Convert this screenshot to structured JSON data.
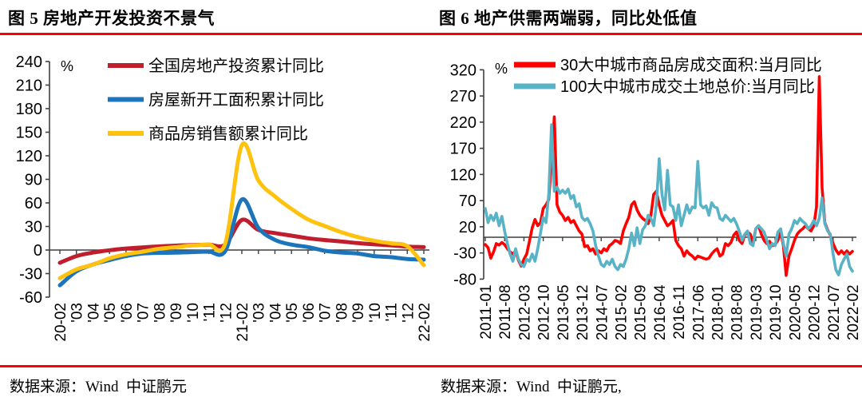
{
  "panels": [
    {
      "source": "数据来源：Wind  中证鹏元"
    },
    {
      "source": "数据来源：Wind  中证鹏元,"
    }
  ],
  "axis_color": "#3f3f3f",
  "divider_color": "#fe0000",
  "chart_data": [
    {
      "type": "line",
      "title": "图 5 房地产开发投资不景气",
      "unit": "%",
      "ylim": [
        -60,
        240
      ],
      "yticks": [
        240,
        210,
        180,
        150,
        120,
        90,
        60,
        30,
        0,
        -30,
        -60
      ],
      "grid": false,
      "legend_position": "top-left-inside",
      "categories": [
        "20-02",
        "'03",
        "'04",
        "'05",
        "'06",
        "'07",
        "'08",
        "'09",
        "'10",
        "'11",
        "'12",
        "21-02",
        "'03",
        "'04",
        "'05",
        "'06",
        "'07",
        "'08",
        "'09",
        "'10",
        "'11",
        "'12",
        "22-02"
      ],
      "series": [
        {
          "name": "全国房地产投资累计同比",
          "color": "#c01e2d",
          "values": [
            -16.3,
            -7.7,
            -3.3,
            -0.3,
            1.9,
            3.4,
            4.6,
            5.6,
            6.3,
            6.8,
            7.0,
            38.3,
            25.6,
            21.6,
            18.3,
            15.0,
            12.7,
            10.9,
            8.8,
            7.2,
            6.0,
            4.4,
            3.7
          ]
        },
        {
          "name": "房屋新开工面积累计同比",
          "color": "#1c75bc",
          "values": [
            -44.9,
            -27.2,
            -18.4,
            -12.8,
            -7.6,
            -4.5,
            -3.6,
            -3.4,
            -2.6,
            -2.0,
            -1.2,
            64.3,
            28.2,
            12.9,
            6.9,
            3.8,
            -0.9,
            -3.2,
            -4.5,
            -7.7,
            -9.1,
            -11.4,
            -12.2
          ]
        },
        {
          "name": "商品房销售额累计同比",
          "color": "#ffc20e",
          "values": [
            -35.9,
            -24.7,
            -18.6,
            -10.6,
            -5.4,
            -2.1,
            1.6,
            3.7,
            5.8,
            7.2,
            8.7,
            133.4,
            88.5,
            68.2,
            52.4,
            38.9,
            30.7,
            22.8,
            16.6,
            11.8,
            8.5,
            4.8,
            -19.3
          ]
        }
      ]
    },
    {
      "type": "line",
      "title": "图 6 地产供需两端弱，同比处低值",
      "unit": "%",
      "ylim": [
        -80,
        320
      ],
      "yticks": [
        320,
        270,
        220,
        170,
        120,
        70,
        20,
        -30,
        -80
      ],
      "grid": false,
      "legend_position": "top-inside",
      "x_range": [
        "2011-01",
        "2022-02"
      ],
      "x_freq": "monthly",
      "x_tick_every": 7,
      "x_tick_labels": [
        "2011-01",
        "2011-08",
        "2012-03",
        "2012-10",
        "2013-05",
        "2013-12",
        "2014-07",
        "2015-02",
        "2015-09",
        "2016-04",
        "2016-11",
        "2017-06",
        "2018-01",
        "2018-08",
        "2019-03",
        "2019-10",
        "2020-05",
        "2020-12",
        "2021-07",
        "2022-02"
      ],
      "series": [
        {
          "name": "30大中城市商品房成交面积:当月同比",
          "color": "#ff0000",
          "values": [
            -14,
            -20,
            -40,
            -28,
            -12,
            -15,
            -10,
            -14,
            -22,
            -28,
            -32,
            -26,
            -44,
            -55,
            -42,
            -32,
            -8,
            18,
            34,
            22,
            28,
            55,
            62,
            72,
            145,
            230,
            62,
            48,
            42,
            32,
            38,
            28,
            32,
            22,
            12,
            6,
            -18,
            -16,
            -26,
            -22,
            -32,
            -26,
            -30,
            -22,
            -26,
            -16,
            -12,
            -6,
            -8,
            -12,
            12,
            26,
            38,
            62,
            68,
            52,
            42,
            36,
            32,
            26,
            42,
            82,
            88,
            62,
            42,
            32,
            22,
            26,
            32,
            -6,
            -16,
            -22,
            -36,
            -26,
            -32,
            -36,
            -42,
            -36,
            -38,
            -40,
            -42,
            -40,
            -32,
            -26,
            -22,
            -36,
            -32,
            -12,
            -16,
            -10,
            4,
            10,
            -6,
            -12,
            4,
            10,
            6,
            -10,
            16,
            22,
            6,
            -6,
            -12,
            -8,
            -16,
            -14,
            -6,
            10,
            -16,
            -73,
            -36,
            -22,
            -6,
            6,
            12,
            16,
            22,
            16,
            12,
            22,
            58,
            307,
            94,
            28,
            14,
            4,
            -12,
            -24,
            -32,
            -26,
            -32,
            -26,
            -32,
            -27
          ]
        },
        {
          "name": "100大中城市成交土地总价:当月同比",
          "color": "#59b3c6",
          "values": [
            55,
            28,
            42,
            32,
            46,
            22,
            40,
            12,
            -12,
            -32,
            -46,
            -22,
            -42,
            -52,
            -56,
            -42,
            -46,
            -32,
            -46,
            -22,
            8,
            38,
            28,
            82,
            215,
            88,
            96,
            84,
            90,
            84,
            92,
            74,
            80,
            58,
            64,
            38,
            32,
            36,
            26,
            12,
            -16,
            -36,
            -52,
            -56,
            -46,
            -52,
            -42,
            -56,
            -62,
            -52,
            -56,
            -42,
            -22,
            8,
            -16,
            18,
            -12,
            14,
            22,
            42,
            36,
            22,
            62,
            150,
            82,
            52,
            128,
            62,
            58,
            32,
            62,
            22,
            42,
            62,
            46,
            58,
            56,
            145,
            62,
            56,
            60,
            42,
            66,
            58,
            56,
            36,
            32,
            42,
            36,
            30,
            36,
            26,
            12,
            -6,
            6,
            12,
            -12,
            -16,
            16,
            22,
            16,
            10,
            -6,
            -22,
            -12,
            -16,
            10,
            16,
            -12,
            -36,
            6,
            16,
            32,
            26,
            36,
            30,
            26,
            16,
            22,
            32,
            22,
            36,
            75,
            26,
            12,
            6,
            -32,
            -62,
            -72,
            -52,
            -42,
            -32,
            -56,
            -65
          ]
        }
      ]
    }
  ]
}
